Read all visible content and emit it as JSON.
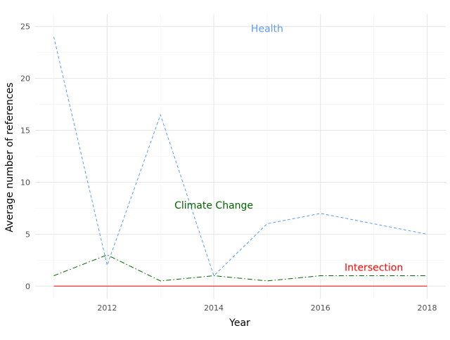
{
  "chart_data": {
    "type": "line",
    "title": "",
    "xlabel": "Year",
    "ylabel": "Average number of references",
    "x": [
      2011,
      2012,
      2013,
      2014,
      2015,
      2016,
      2018
    ],
    "xlim": [
      2010.65,
      2018.35
    ],
    "ylim": [
      -1.2,
      26.2
    ],
    "xticks": [
      "2012",
      "2014",
      "2016",
      "2018"
    ],
    "yticks": [
      "0",
      "5",
      "10",
      "15",
      "20",
      "25"
    ],
    "grid": true,
    "legend": "none",
    "series": [
      {
        "name": "Health",
        "color": "#5b9bf0",
        "style": "dashed",
        "values": [
          24,
          2,
          16.5,
          1,
          6,
          7,
          5
        ]
      },
      {
        "name": "Climate Change",
        "color": "#006400",
        "style": "dashdot",
        "values": [
          1,
          3,
          0.5,
          1,
          0.5,
          1,
          1
        ]
      },
      {
        "name": "Intersection",
        "color": "#ff0000",
        "style": "solid",
        "values": [
          0,
          0,
          0,
          0,
          0,
          0,
          0
        ]
      }
    ]
  }
}
